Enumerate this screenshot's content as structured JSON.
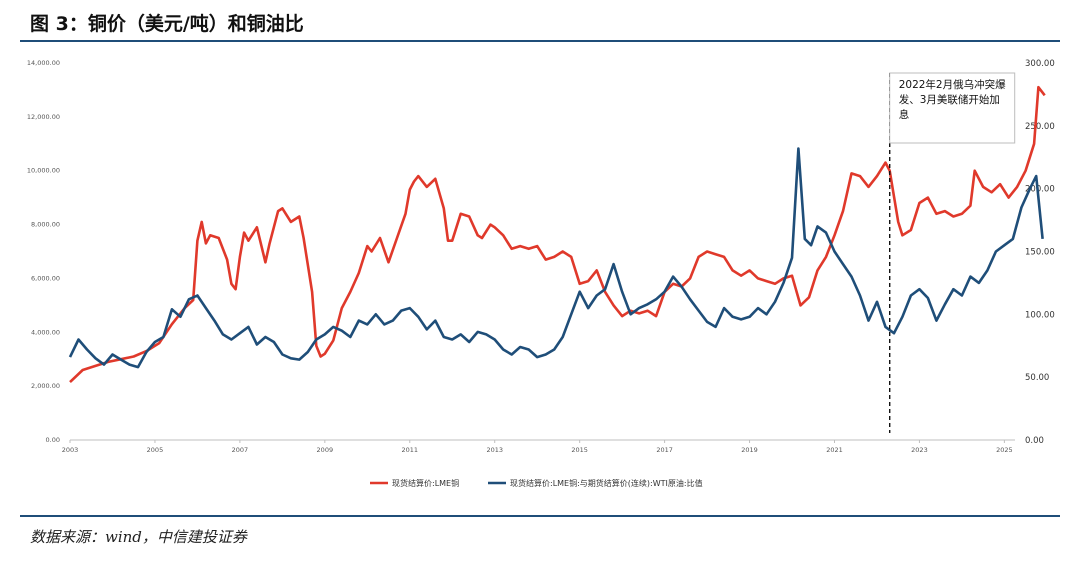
{
  "header": {
    "title": "图 3：铜价（美元/吨）和铜油比"
  },
  "footer": {
    "source": "数据来源：wind，中信建投证券"
  },
  "colors": {
    "copper": "#e0392b",
    "ratio": "#1f4e79",
    "rule": "#1f4e79"
  },
  "chart_data": {
    "type": "line",
    "title": "铜价（美元/吨）和铜油比",
    "x_ticks": [
      "2003",
      "2005",
      "2007",
      "2009",
      "2011",
      "2013",
      "2015",
      "2017",
      "2019",
      "2021",
      "2023",
      "2025"
    ],
    "x_range": [
      2003.0,
      2025.25
    ],
    "y_left": {
      "ticks": [
        "0.00",
        "2,000.00",
        "4,000.00",
        "6,000.00",
        "8,000.00",
        "10,000.00",
        "12,000.00",
        "14,000.00"
      ],
      "range": [
        0,
        14000
      ]
    },
    "y_right": {
      "ticks": [
        "0.00",
        "50.00",
        "100.00",
        "150.00",
        "200.00",
        "250.00",
        "300.00"
      ],
      "range": [
        0,
        300
      ]
    },
    "legend_position": "bottom",
    "series": [
      {
        "name": "现货结算价:LME铜",
        "axis": "left",
        "points": [
          [
            2003.0,
            2150
          ],
          [
            2003.3,
            2600
          ],
          [
            2003.6,
            2750
          ],
          [
            2003.9,
            2900
          ],
          [
            2004.2,
            3000
          ],
          [
            2004.5,
            3100
          ],
          [
            2004.8,
            3300
          ],
          [
            2005.1,
            3600
          ],
          [
            2005.4,
            4300
          ],
          [
            2005.7,
            4900
          ],
          [
            2005.9,
            5200
          ],
          [
            2006.0,
            7400
          ],
          [
            2006.1,
            8100
          ],
          [
            2006.2,
            7300
          ],
          [
            2006.3,
            7600
          ],
          [
            2006.5,
            7500
          ],
          [
            2006.7,
            6700
          ],
          [
            2006.8,
            5800
          ],
          [
            2006.9,
            5600
          ],
          [
            2007.0,
            6800
          ],
          [
            2007.1,
            7700
          ],
          [
            2007.2,
            7400
          ],
          [
            2007.4,
            7900
          ],
          [
            2007.6,
            6600
          ],
          [
            2007.7,
            7300
          ],
          [
            2007.9,
            8500
          ],
          [
            2008.0,
            8600
          ],
          [
            2008.2,
            8100
          ],
          [
            2008.4,
            8300
          ],
          [
            2008.5,
            7500
          ],
          [
            2008.7,
            5500
          ],
          [
            2008.8,
            3500
          ],
          [
            2008.9,
            3100
          ],
          [
            2009.0,
            3200
          ],
          [
            2009.2,
            3700
          ],
          [
            2009.4,
            4900
          ],
          [
            2009.6,
            5500
          ],
          [
            2009.8,
            6200
          ],
          [
            2010.0,
            7200
          ],
          [
            2010.1,
            7000
          ],
          [
            2010.3,
            7500
          ],
          [
            2010.5,
            6600
          ],
          [
            2010.7,
            7500
          ],
          [
            2010.9,
            8400
          ],
          [
            2011.0,
            9300
          ],
          [
            2011.1,
            9600
          ],
          [
            2011.2,
            9800
          ],
          [
            2011.4,
            9400
          ],
          [
            2011.6,
            9700
          ],
          [
            2011.8,
            8600
          ],
          [
            2011.9,
            7400
          ],
          [
            2012.0,
            7400
          ],
          [
            2012.2,
            8400
          ],
          [
            2012.4,
            8300
          ],
          [
            2012.6,
            7600
          ],
          [
            2012.7,
            7500
          ],
          [
            2012.9,
            8000
          ],
          [
            2013.0,
            7900
          ],
          [
            2013.2,
            7600
          ],
          [
            2013.4,
            7100
          ],
          [
            2013.6,
            7200
          ],
          [
            2013.8,
            7100
          ],
          [
            2014.0,
            7200
          ],
          [
            2014.2,
            6700
          ],
          [
            2014.4,
            6800
          ],
          [
            2014.6,
            7000
          ],
          [
            2014.8,
            6800
          ],
          [
            2015.0,
            5800
          ],
          [
            2015.2,
            5900
          ],
          [
            2015.4,
            6300
          ],
          [
            2015.6,
            5500
          ],
          [
            2015.8,
            5000
          ],
          [
            2016.0,
            4600
          ],
          [
            2016.2,
            4800
          ],
          [
            2016.4,
            4700
          ],
          [
            2016.6,
            4800
          ],
          [
            2016.8,
            4600
          ],
          [
            2017.0,
            5500
          ],
          [
            2017.2,
            5800
          ],
          [
            2017.4,
            5700
          ],
          [
            2017.6,
            6000
          ],
          [
            2017.8,
            6800
          ],
          [
            2018.0,
            7000
          ],
          [
            2018.2,
            6900
          ],
          [
            2018.4,
            6800
          ],
          [
            2018.6,
            6300
          ],
          [
            2018.8,
            6100
          ],
          [
            2019.0,
            6300
          ],
          [
            2019.2,
            6000
          ],
          [
            2019.4,
            5900
          ],
          [
            2019.6,
            5800
          ],
          [
            2019.8,
            6000
          ],
          [
            2020.0,
            6100
          ],
          [
            2020.2,
            5000
          ],
          [
            2020.4,
            5300
          ],
          [
            2020.6,
            6300
          ],
          [
            2020.8,
            6800
          ],
          [
            2021.0,
            7600
          ],
          [
            2021.2,
            8500
          ],
          [
            2021.4,
            9900
          ],
          [
            2021.6,
            9800
          ],
          [
            2021.8,
            9400
          ],
          [
            2022.0,
            9800
          ],
          [
            2022.2,
            10300
          ],
          [
            2022.3,
            10000
          ],
          [
            2022.5,
            8100
          ],
          [
            2022.6,
            7600
          ],
          [
            2022.8,
            7800
          ],
          [
            2023.0,
            8800
          ],
          [
            2023.2,
            9000
          ],
          [
            2023.4,
            8400
          ],
          [
            2023.6,
            8500
          ],
          [
            2023.8,
            8300
          ],
          [
            2024.0,
            8400
          ],
          [
            2024.2,
            8700
          ],
          [
            2024.3,
            10000
          ],
          [
            2024.5,
            9400
          ],
          [
            2024.7,
            9200
          ],
          [
            2024.9,
            9500
          ],
          [
            2025.1,
            9000
          ],
          [
            2025.3,
            9400
          ],
          [
            2025.5,
            10000
          ],
          [
            2025.7,
            11000
          ],
          [
            2025.8,
            13100
          ],
          [
            2025.95,
            12800
          ]
        ]
      },
      {
        "name": "现货结算价:LME铜:与期货结算价(连续):WTI原油:比值",
        "axis": "right",
        "points": [
          [
            2003.0,
            66
          ],
          [
            2003.2,
            80
          ],
          [
            2003.4,
            72
          ],
          [
            2003.6,
            65
          ],
          [
            2003.8,
            60
          ],
          [
            2004.0,
            68
          ],
          [
            2004.2,
            64
          ],
          [
            2004.4,
            60
          ],
          [
            2004.6,
            58
          ],
          [
            2004.8,
            70
          ],
          [
            2005.0,
            78
          ],
          [
            2005.2,
            82
          ],
          [
            2005.4,
            104
          ],
          [
            2005.6,
            98
          ],
          [
            2005.8,
            112
          ],
          [
            2006.0,
            115
          ],
          [
            2006.2,
            105
          ],
          [
            2006.4,
            95
          ],
          [
            2006.6,
            84
          ],
          [
            2006.8,
            80
          ],
          [
            2007.0,
            85
          ],
          [
            2007.2,
            90
          ],
          [
            2007.4,
            76
          ],
          [
            2007.6,
            82
          ],
          [
            2007.8,
            78
          ],
          [
            2008.0,
            68
          ],
          [
            2008.2,
            65
          ],
          [
            2008.4,
            64
          ],
          [
            2008.6,
            70
          ],
          [
            2008.8,
            80
          ],
          [
            2009.0,
            84
          ],
          [
            2009.2,
            90
          ],
          [
            2009.4,
            87
          ],
          [
            2009.6,
            82
          ],
          [
            2009.8,
            95
          ],
          [
            2010.0,
            92
          ],
          [
            2010.2,
            100
          ],
          [
            2010.4,
            92
          ],
          [
            2010.6,
            95
          ],
          [
            2010.8,
            103
          ],
          [
            2011.0,
            105
          ],
          [
            2011.2,
            98
          ],
          [
            2011.4,
            88
          ],
          [
            2011.6,
            95
          ],
          [
            2011.8,
            82
          ],
          [
            2012.0,
            80
          ],
          [
            2012.2,
            84
          ],
          [
            2012.4,
            78
          ],
          [
            2012.6,
            86
          ],
          [
            2012.8,
            84
          ],
          [
            2013.0,
            80
          ],
          [
            2013.2,
            72
          ],
          [
            2013.4,
            68
          ],
          [
            2013.6,
            74
          ],
          [
            2013.8,
            72
          ],
          [
            2014.0,
            66
          ],
          [
            2014.2,
            68
          ],
          [
            2014.4,
            72
          ],
          [
            2014.6,
            82
          ],
          [
            2014.8,
            100
          ],
          [
            2015.0,
            118
          ],
          [
            2015.2,
            105
          ],
          [
            2015.4,
            115
          ],
          [
            2015.6,
            120
          ],
          [
            2015.8,
            140
          ],
          [
            2016.0,
            118
          ],
          [
            2016.2,
            100
          ],
          [
            2016.4,
            105
          ],
          [
            2016.6,
            108
          ],
          [
            2016.8,
            112
          ],
          [
            2017.0,
            118
          ],
          [
            2017.2,
            130
          ],
          [
            2017.4,
            122
          ],
          [
            2017.6,
            112
          ],
          [
            2017.8,
            103
          ],
          [
            2018.0,
            94
          ],
          [
            2018.2,
            90
          ],
          [
            2018.4,
            105
          ],
          [
            2018.6,
            98
          ],
          [
            2018.8,
            96
          ],
          [
            2019.0,
            98
          ],
          [
            2019.2,
            105
          ],
          [
            2019.4,
            100
          ],
          [
            2019.6,
            110
          ],
          [
            2019.8,
            125
          ],
          [
            2020.0,
            145
          ],
          [
            2020.15,
            232
          ],
          [
            2020.3,
            160
          ],
          [
            2020.45,
            155
          ],
          [
            2020.6,
            170
          ],
          [
            2020.8,
            165
          ],
          [
            2021.0,
            150
          ],
          [
            2021.2,
            140
          ],
          [
            2021.4,
            130
          ],
          [
            2021.6,
            115
          ],
          [
            2021.8,
            95
          ],
          [
            2022.0,
            110
          ],
          [
            2022.2,
            90
          ],
          [
            2022.4,
            85
          ],
          [
            2022.6,
            98
          ],
          [
            2022.8,
            115
          ],
          [
            2023.0,
            120
          ],
          [
            2023.2,
            113
          ],
          [
            2023.4,
            95
          ],
          [
            2023.6,
            108
          ],
          [
            2023.8,
            120
          ],
          [
            2024.0,
            115
          ],
          [
            2024.2,
            130
          ],
          [
            2024.4,
            125
          ],
          [
            2024.6,
            135
          ],
          [
            2024.8,
            150
          ],
          [
            2025.0,
            155
          ],
          [
            2025.2,
            160
          ],
          [
            2025.4,
            185
          ],
          [
            2025.6,
            200
          ],
          [
            2025.75,
            210
          ],
          [
            2025.9,
            160
          ]
        ]
      }
    ],
    "annotations": [
      {
        "x": 2022.3,
        "lines": [
          "2022年2月俄乌冲突爆",
          "发、3月美联储开始加",
          "息"
        ]
      }
    ]
  }
}
